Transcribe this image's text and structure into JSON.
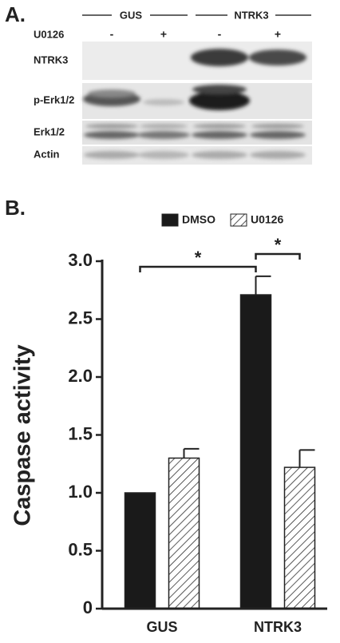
{
  "panel_a": {
    "label": "A.",
    "groups": [
      "GUS",
      "NTRK3"
    ],
    "treatment_label": "U0126",
    "treatment_signs": [
      "-",
      "+",
      "-",
      "+"
    ],
    "rows": [
      "NTRK3",
      "p-Erk1/2",
      "Erk1/2",
      "Actin"
    ]
  },
  "panel_b": {
    "label": "B."
  },
  "chart_data": {
    "type": "bar",
    "y_label": "Caspase activity",
    "categories": [
      "GUS",
      "NTRK3"
    ],
    "series": [
      {
        "name": "DMSO",
        "color": "#1a1a1a",
        "pattern": "solid",
        "values": [
          1.0,
          2.71
        ],
        "errors": [
          null,
          0.16
        ]
      },
      {
        "name": "U0126",
        "color": "#ffffff",
        "pattern": "hatch",
        "values": [
          1.3,
          1.22
        ],
        "errors": [
          0.08,
          0.15
        ]
      }
    ],
    "ylim": [
      0,
      3.0
    ],
    "yticks": [
      0,
      0.5,
      {
        "value": 1,
        "label": "1.0"
      },
      1.5,
      {
        "value": 2,
        "label": "2.0"
      },
      2.5,
      {
        "value": 3,
        "label": "3.0"
      }
    ],
    "annotations": [
      "*",
      "*"
    ]
  }
}
